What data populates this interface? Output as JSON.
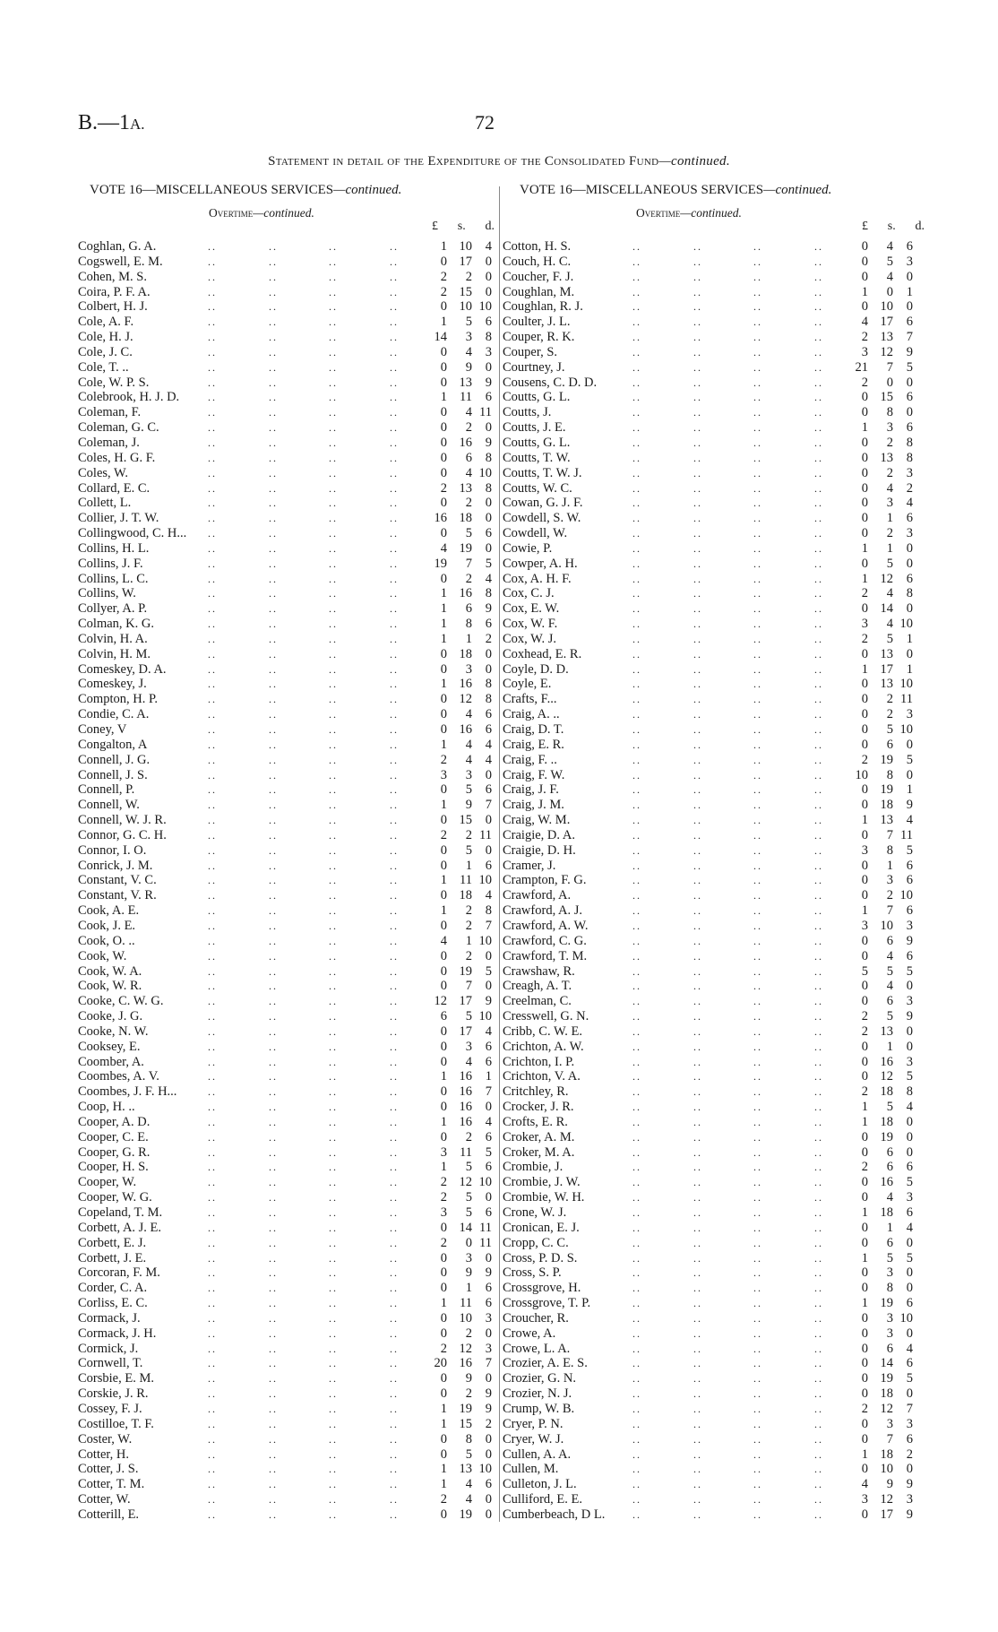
{
  "header": {
    "doc_ref_main": "B.—1",
    "doc_ref_suffix": "A.",
    "page_number": "72",
    "statement_main": "Statement in detail of the Expenditure of the Consolidated Fund",
    "statement_suffix": "—continued."
  },
  "left": {
    "vote_title": "VOTE 16—MISCELLANEOUS SERVICES",
    "vote_suffix": "—continued.",
    "section": "Overtime",
    "section_suffix": "—continued.",
    "lsd": [
      "£",
      "s.",
      "d."
    ],
    "rows": [
      [
        "Coghlan, G. A.",
        "1",
        "10",
        "4"
      ],
      [
        "Cogswell, E. M.",
        "0",
        "17",
        "0"
      ],
      [
        "Cohen, M. S.",
        "2",
        "2",
        "0"
      ],
      [
        "Coira, P. F. A.",
        "2",
        "15",
        "0"
      ],
      [
        "Colbert, H. J.",
        "0",
        "10",
        "10"
      ],
      [
        "Cole, A. F.",
        "1",
        "5",
        "6"
      ],
      [
        "Cole, H. J.",
        "14",
        "3",
        "8"
      ],
      [
        "Cole, J. C.",
        "0",
        "4",
        "3"
      ],
      [
        "Cole, T.  ..",
        "0",
        "9",
        "0"
      ],
      [
        "Cole, W. P. S.",
        "0",
        "13",
        "9"
      ],
      [
        "Colebrook, H. J. D.",
        "1",
        "11",
        "6"
      ],
      [
        "Coleman, F.",
        "0",
        "4",
        "11"
      ],
      [
        "Coleman, G. C.",
        "0",
        "2",
        "0"
      ],
      [
        "Coleman, J.",
        "0",
        "16",
        "9"
      ],
      [
        "Coles, H. G. F.",
        "0",
        "6",
        "8"
      ],
      [
        "Coles, W.",
        "0",
        "4",
        "10"
      ],
      [
        "Collard, E. C.",
        "2",
        "13",
        "8"
      ],
      [
        "Collett, L.",
        "0",
        "2",
        "0"
      ],
      [
        "Collier, J. T. W.",
        "16",
        "18",
        "0"
      ],
      [
        "Collingwood, C. H...",
        "0",
        "5",
        "6"
      ],
      [
        "Collins, H. L.",
        "4",
        "19",
        "0"
      ],
      [
        "Collins, J. F.",
        "19",
        "7",
        "5"
      ],
      [
        "Collins, L. C.",
        "0",
        "2",
        "4"
      ],
      [
        "Collins, W.",
        "1",
        "16",
        "8"
      ],
      [
        "Collyer, A. P.",
        "1",
        "6",
        "9"
      ],
      [
        "Colman, K. G.",
        "1",
        "8",
        "6"
      ],
      [
        "Colvin, H. A.",
        "1",
        "1",
        "2"
      ],
      [
        "Colvin, H. M.",
        "0",
        "18",
        "0"
      ],
      [
        "Comeskey, D. A.",
        "0",
        "3",
        "0"
      ],
      [
        "Comeskey, J.",
        "1",
        "16",
        "8"
      ],
      [
        "Compton, H. P.",
        "0",
        "12",
        "8"
      ],
      [
        "Condie, C. A.",
        "0",
        "4",
        "6"
      ],
      [
        "Coney, V",
        "0",
        "16",
        "6"
      ],
      [
        "Congalton, A",
        "1",
        "4",
        "4"
      ],
      [
        "Connell, J. G.",
        "2",
        "4",
        "4"
      ],
      [
        "Connell, J. S.",
        "3",
        "3",
        "0"
      ],
      [
        "Connell, P.",
        "0",
        "5",
        "6"
      ],
      [
        "Connell, W.",
        "1",
        "9",
        "7"
      ],
      [
        "Connell, W. J. R.",
        "0",
        "15",
        "0"
      ],
      [
        "Connor, G. C. H.",
        "2",
        "2",
        "11"
      ],
      [
        "Connor, I. O.",
        "0",
        "5",
        "0"
      ],
      [
        "Conrick, J. M.",
        "0",
        "1",
        "6"
      ],
      [
        "Constant, V. C.",
        "1",
        "11",
        "10"
      ],
      [
        "Constant, V. R.",
        "0",
        "18",
        "4"
      ],
      [
        "Cook, A. E.",
        "1",
        "2",
        "8"
      ],
      [
        "Cook, J. E.",
        "0",
        "2",
        "7"
      ],
      [
        "Cook, O.  ..",
        "4",
        "1",
        "10"
      ],
      [
        "Cook, W.",
        "0",
        "2",
        "0"
      ],
      [
        "Cook, W. A.",
        "0",
        "19",
        "5"
      ],
      [
        "Cook, W. R.",
        "0",
        "7",
        "0"
      ],
      [
        "Cooke, C. W. G.",
        "12",
        "17",
        "9"
      ],
      [
        "Cooke, J. G.",
        "6",
        "5",
        "10"
      ],
      [
        "Cooke, N. W.",
        "0",
        "17",
        "4"
      ],
      [
        "Cooksey, E.",
        "0",
        "3",
        "6"
      ],
      [
        "Coomber, A.",
        "0",
        "4",
        "6"
      ],
      [
        "Coombes, A. V.",
        "1",
        "16",
        "1"
      ],
      [
        "Coombes, J. F. H...",
        "0",
        "16",
        "7"
      ],
      [
        "Coop, H.  ..",
        "0",
        "16",
        "0"
      ],
      [
        "Cooper, A. D.",
        "1",
        "16",
        "4"
      ],
      [
        "Cooper, C. E.",
        "0",
        "2",
        "6"
      ],
      [
        "Cooper, G. R.",
        "3",
        "11",
        "5"
      ],
      [
        "Cooper, H. S.",
        "1",
        "5",
        "6"
      ],
      [
        "Cooper, W.",
        "2",
        "12",
        "10"
      ],
      [
        "Cooper, W. G.",
        "2",
        "5",
        "0"
      ],
      [
        "Copeland, T. M.",
        "3",
        "5",
        "6"
      ],
      [
        "Corbett, A. J. E.",
        "0",
        "14",
        "11"
      ],
      [
        "Corbett, E. J.",
        "2",
        "0",
        "11"
      ],
      [
        "Corbett, J. E.",
        "0",
        "3",
        "0"
      ],
      [
        "Corcoran, F. M.",
        "0",
        "9",
        "9"
      ],
      [
        "Corder, C. A.",
        "0",
        "1",
        "6"
      ],
      [
        "Corliss, E. C.",
        "1",
        "11",
        "6"
      ],
      [
        "Cormack, J.",
        "0",
        "10",
        "3"
      ],
      [
        "Cormack, J. H.",
        "0",
        "2",
        "0"
      ],
      [
        "Cormick, J.",
        "2",
        "12",
        "3"
      ],
      [
        "Cornwell, T.",
        "20",
        "16",
        "7"
      ],
      [
        "Corsbie, E. M.",
        "0",
        "9",
        "0"
      ],
      [
        "Corskie, J. R.",
        "0",
        "2",
        "9"
      ],
      [
        "Cossey, F. J.",
        "1",
        "19",
        "9"
      ],
      [
        "Costilloe, T. F.",
        "1",
        "15",
        "2"
      ],
      [
        "Coster, W.",
        "0",
        "8",
        "0"
      ],
      [
        "Cotter, H.",
        "0",
        "5",
        "0"
      ],
      [
        "Cotter, J. S.",
        "1",
        "13",
        "10"
      ],
      [
        "Cotter, T. M.",
        "1",
        "4",
        "6"
      ],
      [
        "Cotter, W.",
        "2",
        "4",
        "0"
      ],
      [
        "Cotterill, E.",
        "0",
        "19",
        "0"
      ]
    ]
  },
  "right": {
    "vote_title": "VOTE 16—MISCELLANEOUS SERVICES",
    "vote_suffix": "—continued.",
    "section": "Overtime",
    "section_suffix": "—continued.",
    "lsd": [
      "£",
      "s.",
      "d."
    ],
    "rows": [
      [
        "Cotton, H. S.",
        "0",
        "4",
        "6"
      ],
      [
        "Couch, H. C.",
        "0",
        "5",
        "3"
      ],
      [
        "Coucher, F. J.",
        "0",
        "4",
        "0"
      ],
      [
        "Coughlan, M.",
        "1",
        "0",
        "1"
      ],
      [
        "Coughlan, R. J.",
        "0",
        "10",
        "0"
      ],
      [
        "Coulter, J. L.",
        "4",
        "17",
        "6"
      ],
      [
        "Couper, R. K.",
        "2",
        "13",
        "7"
      ],
      [
        "Couper, S.",
        "3",
        "12",
        "9"
      ],
      [
        "Courtney, J.",
        "21",
        "7",
        "5"
      ],
      [
        "Cousens, C. D. D.",
        "2",
        "0",
        "0"
      ],
      [
        "Coutts, G. L.",
        "0",
        "15",
        "6"
      ],
      [
        "Coutts, J.",
        "0",
        "8",
        "0"
      ],
      [
        "Coutts, J. E.",
        "1",
        "3",
        "6"
      ],
      [
        "Coutts, G. L.",
        "0",
        "2",
        "8"
      ],
      [
        "Coutts, T. W.",
        "0",
        "13",
        "8"
      ],
      [
        "Coutts, T. W. J.",
        "0",
        "2",
        "3"
      ],
      [
        "Coutts, W. C.",
        "0",
        "4",
        "2"
      ],
      [
        "Cowan, G. J. F.",
        "0",
        "3",
        "4"
      ],
      [
        "Cowdell, S. W.",
        "0",
        "1",
        "6"
      ],
      [
        "Cowdell, W.",
        "0",
        "2",
        "3"
      ],
      [
        "Cowie, P.",
        "1",
        "1",
        "0"
      ],
      [
        "Cowper, A. H.",
        "0",
        "5",
        "0"
      ],
      [
        "Cox, A. H. F.",
        "1",
        "12",
        "6"
      ],
      [
        "Cox, C. J.",
        "2",
        "4",
        "8"
      ],
      [
        "Cox, E. W.",
        "0",
        "14",
        "0"
      ],
      [
        "Cox, W. F.",
        "3",
        "4",
        "10"
      ],
      [
        "Cox, W. J.",
        "2",
        "5",
        "1"
      ],
      [
        "Coxhead, E. R.",
        "0",
        "13",
        "0"
      ],
      [
        "Coyle, D. D.",
        "1",
        "17",
        "1"
      ],
      [
        "Coyle, E.",
        "0",
        "13",
        "10"
      ],
      [
        "Crafts, F...",
        "0",
        "2",
        "11"
      ],
      [
        "Craig, A.  ..",
        "0",
        "2",
        "3"
      ],
      [
        "Craig, D. T.",
        "0",
        "5",
        "10"
      ],
      [
        "Craig, E. R.",
        "0",
        "6",
        "0"
      ],
      [
        "Craig, F.  ..",
        "2",
        "19",
        "5"
      ],
      [
        "Craig, F. W.",
        "10",
        "8",
        "0"
      ],
      [
        "Craig, J. F.",
        "0",
        "19",
        "1"
      ],
      [
        "Craig, J. M.",
        "0",
        "18",
        "9"
      ],
      [
        "Craig, W. M.",
        "1",
        "13",
        "4"
      ],
      [
        "Craigie, D. A.",
        "0",
        "7",
        "11"
      ],
      [
        "Craigie, D. H.",
        "3",
        "8",
        "5"
      ],
      [
        "Cramer, J.",
        "0",
        "1",
        "6"
      ],
      [
        "Crampton, F. G.",
        "0",
        "3",
        "6"
      ],
      [
        "Crawford, A.",
        "0",
        "2",
        "10"
      ],
      [
        "Crawford, A. J.",
        "1",
        "7",
        "6"
      ],
      [
        "Crawford, A. W.",
        "3",
        "10",
        "3"
      ],
      [
        "Crawford, C. G.",
        "0",
        "6",
        "9"
      ],
      [
        "Crawford, T. M.",
        "0",
        "4",
        "6"
      ],
      [
        "Crawshaw, R.",
        "5",
        "5",
        "5"
      ],
      [
        "Creagh, A. T.",
        "0",
        "4",
        "0"
      ],
      [
        "Creelman, C.",
        "0",
        "6",
        "3"
      ],
      [
        "Cresswell, G. N.",
        "2",
        "5",
        "9"
      ],
      [
        "Cribb, C. W. E.",
        "2",
        "13",
        "0"
      ],
      [
        "Crichton, A. W.",
        "0",
        "1",
        "0"
      ],
      [
        "Crichton, I. P.",
        "0",
        "16",
        "3"
      ],
      [
        "Crichton, V. A.",
        "0",
        "12",
        "5"
      ],
      [
        "Critchley, R.",
        "2",
        "18",
        "8"
      ],
      [
        "Crocker, J. R.",
        "1",
        "5",
        "4"
      ],
      [
        "Crofts, E. R.",
        "1",
        "18",
        "0"
      ],
      [
        "Croker, A. M.",
        "0",
        "19",
        "0"
      ],
      [
        "Croker, M. A.",
        "0",
        "6",
        "0"
      ],
      [
        "Crombie, J.",
        "2",
        "6",
        "6"
      ],
      [
        "Crombie, J. W.",
        "0",
        "16",
        "5"
      ],
      [
        "Crombie, W. H.",
        "0",
        "4",
        "3"
      ],
      [
        "Crone, W. J.",
        "1",
        "18",
        "6"
      ],
      [
        "Cronican, E. J.",
        "0",
        "1",
        "4"
      ],
      [
        "Cropp, C. C.",
        "0",
        "6",
        "0"
      ],
      [
        "Cross, P. D. S.",
        "1",
        "5",
        "5"
      ],
      [
        "Cross, S. P.",
        "0",
        "3",
        "0"
      ],
      [
        "Crossgrove, H.",
        "0",
        "8",
        "0"
      ],
      [
        "Crossgrove, T. P.",
        "1",
        "19",
        "6"
      ],
      [
        "Croucher, R.",
        "0",
        "3",
        "10"
      ],
      [
        "Crowe, A.",
        "0",
        "3",
        "0"
      ],
      [
        "Crowe, L. A.",
        "0",
        "6",
        "4"
      ],
      [
        "Crozier, A. E. S.",
        "0",
        "14",
        "6"
      ],
      [
        "Crozier, G. N.",
        "0",
        "19",
        "5"
      ],
      [
        "Crozier, N. J.",
        "0",
        "18",
        "0"
      ],
      [
        "Crump, W. B.",
        "2",
        "12",
        "7"
      ],
      [
        "Cryer, P. N.",
        "0",
        "3",
        "3"
      ],
      [
        "Cryer, W. J.",
        "0",
        "7",
        "6"
      ],
      [
        "Cullen, A. A.",
        "1",
        "18",
        "2"
      ],
      [
        "Cullen, M.",
        "0",
        "10",
        "0"
      ],
      [
        "Culleton, J. L.",
        "4",
        "9",
        "9"
      ],
      [
        "Culliford, E. E.",
        "3",
        "12",
        "3"
      ],
      [
        "Cumberbeach, D L.",
        "0",
        "17",
        "9"
      ]
    ]
  }
}
